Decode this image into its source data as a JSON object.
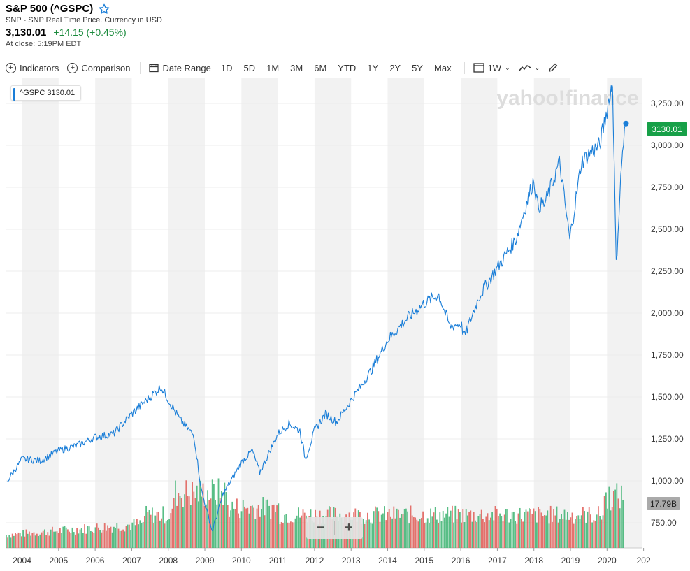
{
  "header": {
    "title": "S&P 500 (^GSPC)",
    "subtitle": "SNP - SNP Real Time Price. Currency in USD",
    "price": "3,130.01",
    "change": "+14.15 (+0.45%)",
    "close_time": "At close: 5:19PM EDT"
  },
  "toolbar": {
    "indicators": "Indicators",
    "comparison": "Comparison",
    "date_range": "Date Range",
    "ranges": [
      "1D",
      "5D",
      "1M",
      "3M",
      "6M",
      "YTD",
      "1Y",
      "2Y",
      "5Y",
      "Max"
    ],
    "interval": "1W"
  },
  "legend": {
    "label": "^GSPC",
    "value": "3130.01"
  },
  "watermark": "yahoo!finance",
  "colors": {
    "line": "#1a7ed8",
    "up": "#3cb371",
    "down": "#e05a55",
    "band": "#f2f2f2",
    "badge": "#17a048",
    "vol_badge": "#aaaaaa"
  },
  "chart_data": {
    "type": "line",
    "title": "S&P 500 (^GSPC)",
    "series": [
      {
        "name": "^GSPC",
        "x": [
          2003.6,
          2004.0,
          2004.5,
          2005.0,
          2005.5,
          2006.0,
          2006.5,
          2007.0,
          2007.5,
          2007.8,
          2008.3,
          2008.7,
          2008.9,
          2009.2,
          2009.5,
          2010.0,
          2010.3,
          2010.5,
          2011.0,
          2011.3,
          2011.6,
          2011.75,
          2012.0,
          2012.3,
          2012.6,
          2013.0,
          2013.5,
          2014.0,
          2014.5,
          2015.0,
          2015.4,
          2015.7,
          2016.0,
          2016.1,
          2016.5,
          2017.0,
          2017.5,
          2018.0,
          2018.1,
          2018.3,
          2018.7,
          2018.98,
          2019.3,
          2019.5,
          2019.8,
          2020.1,
          2020.15,
          2020.25,
          2020.4,
          2020.5
        ],
        "y": [
          1000,
          1130,
          1120,
          1180,
          1210,
          1260,
          1280,
          1400,
          1500,
          1560,
          1370,
          1270,
          950,
          700,
          920,
          1110,
          1180,
          1050,
          1280,
          1340,
          1300,
          1130,
          1300,
          1400,
          1350,
          1480,
          1640,
          1840,
          1960,
          2060,
          2110,
          1920,
          1940,
          1860,
          2100,
          2270,
          2440,
          2800,
          2640,
          2650,
          2900,
          2440,
          2900,
          2950,
          3000,
          3320,
          3380,
          2280,
          2900,
          3130
        ]
      }
    ],
    "volume_bars": "green/red weekly volume bars",
    "volume_label": "17.79B",
    "last_value_label": "3130.01",
    "xlabel": "",
    "ylabel": "",
    "x_ticks": [
      "2004",
      "2005",
      "2006",
      "2007",
      "2008",
      "2009",
      "2010",
      "2011",
      "2012",
      "2013",
      "2014",
      "2015",
      "2016",
      "2017",
      "2018",
      "2019",
      "2020",
      "202"
    ],
    "y_ticks": [
      "750.00",
      "1,000.00",
      "1,250.00",
      "1,500.00",
      "1,750.00",
      "2,000.00",
      "2,250.00",
      "2,500.00",
      "2,750.00",
      "3,000.00",
      "3,250.00"
    ],
    "ylim": [
      600,
      3400
    ],
    "xlim": [
      2003.55,
      2020.95
    ]
  }
}
